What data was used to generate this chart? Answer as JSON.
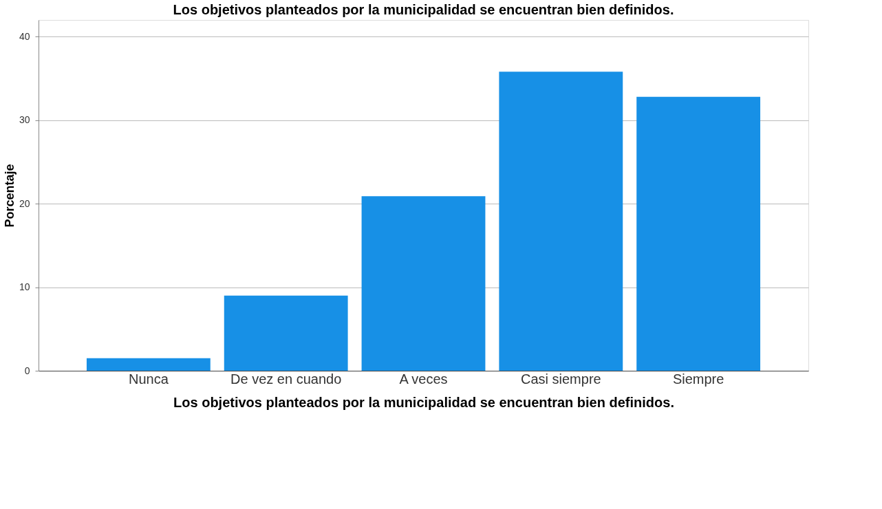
{
  "chart_data": {
    "type": "bar",
    "title": "Los objetivos planteados por la municipalidad se encuentran bien definidos.",
    "xlabel": "Los objetivos planteados por la municipalidad se encuentran bien definidos.",
    "ylabel": "Porcentaje",
    "categories": [
      "Nunca",
      "De vez en cuando",
      "A veces",
      "Casi siempre",
      "Siempre"
    ],
    "values": [
      1.5,
      9.0,
      20.9,
      35.8,
      32.8
    ],
    "color": "#1790e6",
    "ylim": [
      0,
      42
    ],
    "yticks": [
      0,
      10,
      20,
      30,
      40
    ],
    "grid": "y"
  }
}
